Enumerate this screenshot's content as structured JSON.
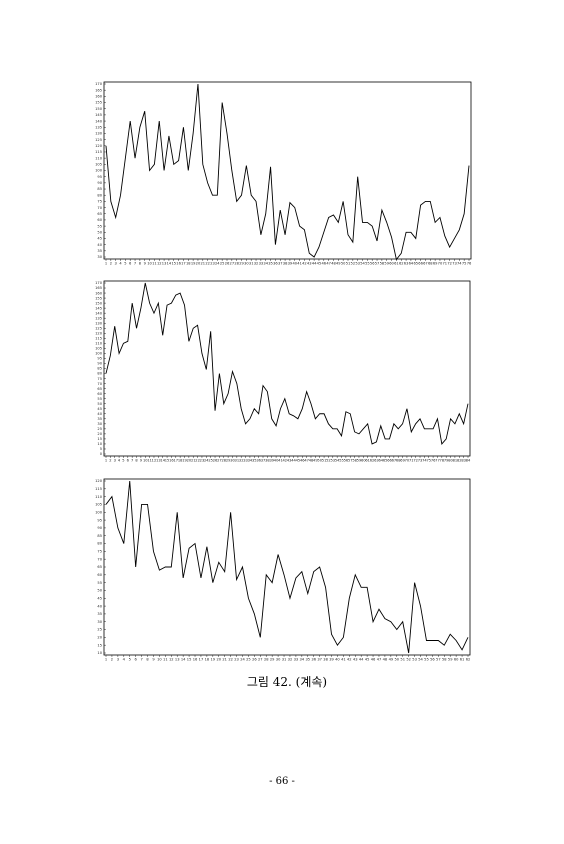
{
  "chart_data": [
    {
      "type": "line",
      "color": "#000000",
      "x": [
        1,
        2,
        3,
        4,
        5,
        6,
        7,
        8,
        9,
        10,
        11,
        12,
        13,
        14,
        15,
        16,
        17,
        18,
        19,
        20,
        21,
        22,
        23,
        24,
        25,
        26,
        27,
        28,
        29,
        30,
        31,
        32,
        33,
        34,
        35,
        36,
        37,
        38,
        39,
        40,
        41,
        42,
        43,
        44,
        45,
        46,
        47,
        48,
        49,
        50,
        51,
        52,
        53,
        54,
        55,
        56,
        57,
        58,
        59,
        60,
        61,
        62,
        63,
        64,
        65,
        66,
        67,
        68,
        69,
        70,
        71,
        72,
        73,
        74,
        75,
        76
      ],
      "values": [
        120,
        75,
        62,
        80,
        110,
        140,
        110,
        135,
        148,
        100,
        105,
        140,
        100,
        128,
        105,
        108,
        135,
        100,
        130,
        170,
        105,
        90,
        80,
        80,
        155,
        130,
        100,
        75,
        80,
        104,
        80,
        75,
        48,
        65,
        103,
        40,
        68,
        48,
        74,
        70,
        55,
        52,
        33,
        30,
        38,
        50,
        62,
        64,
        58,
        75,
        48,
        42,
        95,
        58,
        58,
        55,
        43,
        68,
        58,
        46,
        28,
        33,
        50,
        50,
        45,
        72,
        75,
        75,
        58,
        62,
        47,
        38,
        45,
        52,
        65,
        104
      ],
      "xlim": [
        1,
        76
      ],
      "ylim": [
        30,
        170
      ],
      "yticks": [
        30,
        35,
        40,
        45,
        50,
        55,
        60,
        65,
        70,
        75,
        80,
        85,
        90,
        95,
        100,
        105,
        110,
        115,
        120,
        125,
        130,
        135,
        140,
        145,
        150,
        155,
        160,
        165,
        170
      ]
    },
    {
      "type": "line",
      "color": "#000000",
      "x": [
        1,
        2,
        3,
        4,
        5,
        6,
        7,
        8,
        9,
        10,
        11,
        12,
        13,
        14,
        15,
        16,
        17,
        18,
        19,
        20,
        21,
        22,
        23,
        24,
        25,
        26,
        27,
        28,
        29,
        30,
        31,
        32,
        33,
        34,
        35,
        36,
        37,
        38,
        39,
        40,
        41,
        42,
        43,
        44,
        45,
        46,
        47,
        48,
        49,
        50,
        51,
        52,
        53,
        54,
        55,
        56,
        57,
        58,
        59,
        60,
        61,
        62,
        63,
        64,
        65,
        66,
        67,
        68,
        69,
        70,
        71,
        72,
        73,
        74,
        75,
        76,
        77,
        78,
        79,
        80,
        81,
        82,
        83,
        84
      ],
      "values": [
        80,
        98,
        127,
        100,
        110,
        112,
        150,
        125,
        145,
        170,
        150,
        140,
        150,
        118,
        148,
        150,
        158,
        160,
        148,
        112,
        125,
        128,
        100,
        84,
        122,
        43,
        80,
        50,
        60,
        82,
        70,
        45,
        30,
        35,
        45,
        40,
        68,
        62,
        35,
        28,
        45,
        55,
        40,
        38,
        35,
        45,
        62,
        50,
        35,
        40,
        40,
        30,
        25,
        25,
        18,
        42,
        40,
        22,
        20,
        25,
        30,
        10,
        12,
        28,
        15,
        15,
        30,
        25,
        30,
        45,
        22,
        30,
        35,
        25,
        25,
        25,
        35,
        10,
        15,
        35,
        30,
        40,
        30,
        50
      ],
      "xlim": [
        1,
        84
      ],
      "ylim": [
        0,
        170
      ],
      "yticks": [
        0,
        5,
        10,
        15,
        20,
        25,
        30,
        35,
        40,
        45,
        50,
        55,
        60,
        65,
        70,
        75,
        80,
        85,
        90,
        95,
        100,
        105,
        110,
        115,
        120,
        125,
        130,
        135,
        140,
        145,
        150,
        155,
        160,
        165,
        170
      ]
    },
    {
      "type": "line",
      "color": "#000000",
      "x": [
        1,
        2,
        3,
        4,
        5,
        6,
        7,
        8,
        9,
        10,
        11,
        12,
        13,
        14,
        15,
        16,
        17,
        18,
        19,
        20,
        21,
        22,
        23,
        24,
        25,
        26,
        27,
        28,
        29,
        30,
        31,
        32,
        33,
        34,
        35,
        36,
        37,
        38,
        39,
        40,
        41,
        42,
        43,
        44,
        45,
        46,
        47,
        48,
        49,
        50,
        51,
        52,
        53,
        54,
        55,
        56,
        57,
        58,
        59,
        60,
        61,
        62
      ],
      "values": [
        105,
        110,
        90,
        80,
        120,
        65,
        105,
        105,
        75,
        63,
        65,
        65,
        100,
        58,
        77,
        80,
        58,
        78,
        55,
        68,
        62,
        100,
        57,
        65,
        45,
        35,
        20,
        60,
        55,
        73,
        60,
        45,
        58,
        62,
        48,
        62,
        65,
        52,
        22,
        15,
        20,
        45,
        60,
        52,
        52,
        30,
        38,
        32,
        30,
        25,
        30,
        10,
        55,
        40,
        18,
        18,
        18,
        15,
        22,
        18,
        12,
        20
      ],
      "xlim": [
        1,
        62
      ],
      "ylim": [
        10,
        120
      ],
      "yticks": [
        10,
        15,
        20,
        25,
        30,
        35,
        40,
        45,
        50,
        55,
        60,
        65,
        70,
        75,
        80,
        85,
        90,
        95,
        100,
        105,
        110,
        115,
        120
      ]
    }
  ],
  "caption": "그림 42. (계속)",
  "page_number": "- 66 -"
}
